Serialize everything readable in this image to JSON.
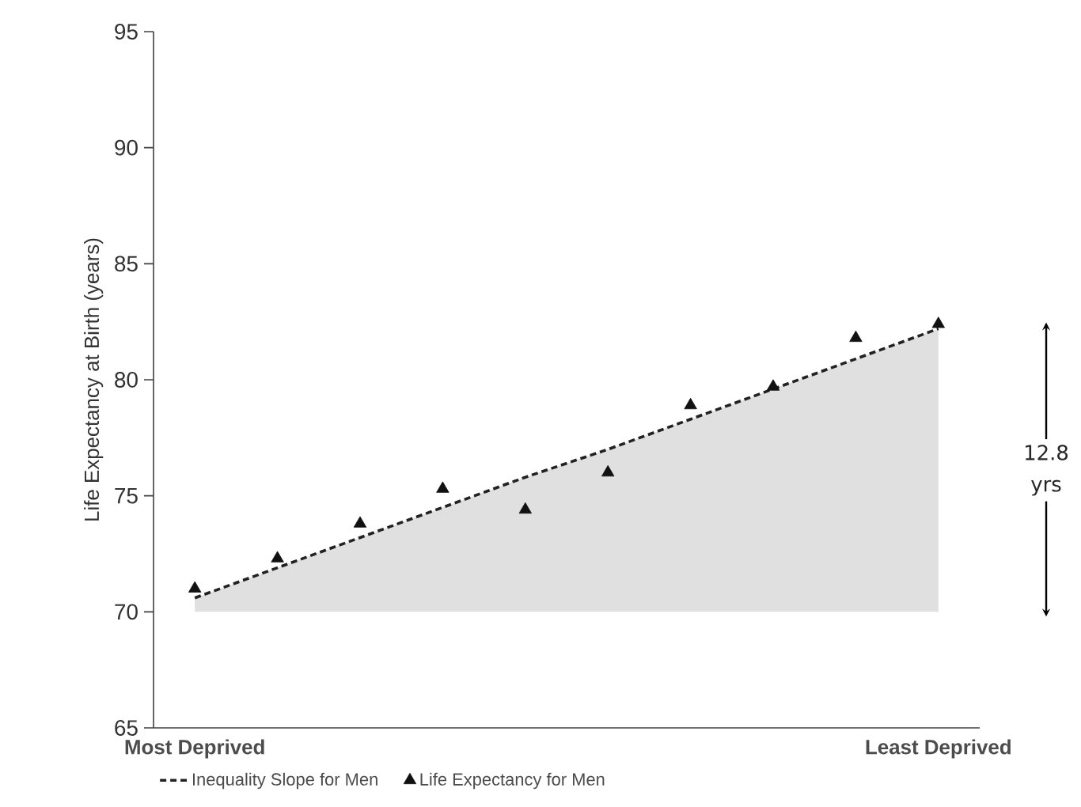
{
  "chart_data": {
    "type": "scatter",
    "ylabel": "Life Expectancy at Birth (years)",
    "categories": [
      "Most Deprived",
      null,
      null,
      null,
      null,
      null,
      null,
      null,
      null,
      "Least Deprived"
    ],
    "ylim": [
      65,
      95
    ],
    "yticks": [
      65,
      70,
      75,
      80,
      85,
      90,
      95
    ],
    "series": [
      {
        "name": "Inequality Slope for Men",
        "type": "line",
        "line_style": "dashed",
        "color": "#222222",
        "values": [
          70.6,
          71.9,
          73.2,
          74.5,
          75.8,
          77.0,
          78.3,
          79.6,
          80.9,
          82.2
        ],
        "lower": [
          70,
          70,
          70,
          70,
          70,
          70,
          70,
          70,
          70,
          70
        ],
        "upper": [
          70.6,
          71.9,
          73.2,
          74.5,
          75.8,
          77.0,
          78.3,
          79.6,
          80.9,
          82.2
        ]
      },
      {
        "name": "Life Expectancy for Men",
        "marker": "triangle",
        "color": "#111111",
        "values": [
          71.0,
          72.3,
          73.8,
          75.3,
          74.4,
          76.0,
          78.9,
          79.7,
          81.8,
          82.4
        ]
      }
    ],
    "annotations": [
      "12.8 yrs"
    ],
    "legend": "bottom",
    "grid": false
  }
}
